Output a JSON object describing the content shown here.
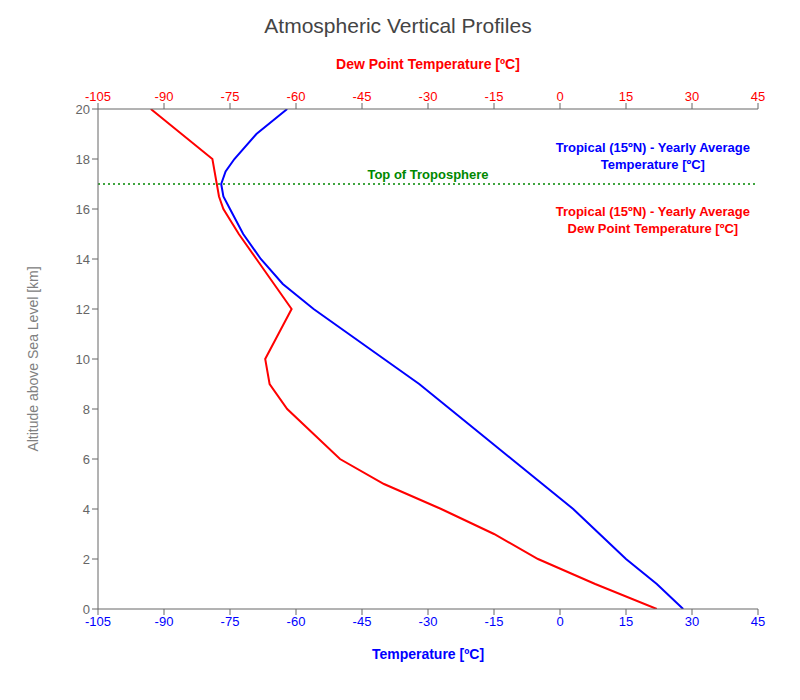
{
  "chart_data": {
    "type": "line",
    "title": "Atmospheric Vertical Profiles",
    "xlabel": "Temperature [ºC]",
    "x2label": "Dew Point Temperature [ºC]",
    "ylabel": "Altitude above Sea Level [km]",
    "xlim": [
      -105,
      45
    ],
    "xticks": [
      -105,
      -90,
      -75,
      -60,
      -45,
      -30,
      -15,
      0,
      15,
      30,
      45
    ],
    "x2lim": [
      -105,
      45
    ],
    "x2ticks": [
      -105,
      -90,
      -75,
      -60,
      -45,
      -30,
      -15,
      0,
      15,
      30,
      45
    ],
    "ylim": [
      0,
      20
    ],
    "yticks": [
      0,
      2,
      4,
      6,
      8,
      10,
      12,
      14,
      16,
      18,
      20
    ],
    "grid": false,
    "legend": "upper right",
    "series": [
      {
        "name": "Tropical (15ºN) - Yearly Average\nTemperature [ºC]",
        "color": "#0000ff",
        "axis": "x",
        "x": [
          28,
          22,
          15,
          9,
          3,
          -4,
          -11,
          -18,
          -25,
          -32,
          -40,
          -48,
          -56,
          -63,
          -68,
          -72,
          -75,
          -76.5,
          -77,
          -76,
          -74,
          -69,
          -62
        ],
        "y": [
          0,
          1,
          2,
          3,
          4,
          5,
          6,
          7,
          8,
          9,
          10,
          11,
          12,
          13,
          14,
          15,
          16,
          16.5,
          17,
          17.5,
          18,
          19,
          20
        ]
      },
      {
        "name": "Tropical (15ºN) - Yearly Average\nDew Point Temperature [ºC]",
        "color": "#ff0000",
        "axis": "x2",
        "x": [
          22,
          8,
          -5,
          -15,
          -27,
          -40,
          -50,
          -56,
          -62,
          -66,
          -67,
          -64,
          -61,
          -65,
          -69,
          -73,
          -76.5,
          -77.5,
          -78,
          -79,
          -86,
          -93
        ],
        "y": [
          0,
          1,
          2,
          3,
          4,
          5,
          6,
          7,
          8,
          9,
          10,
          11,
          12,
          13,
          14,
          15,
          16,
          16.5,
          17,
          18,
          19,
          20
        ]
      }
    ],
    "reference_lines": [
      {
        "y": 17.0,
        "label": "Top of Troposphere",
        "color": "#008800",
        "line_style": "dotted"
      }
    ]
  }
}
